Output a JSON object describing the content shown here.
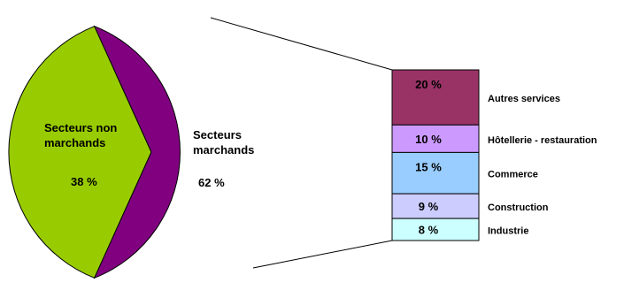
{
  "chart_data": {
    "type": "bar-of-pie",
    "pie": {
      "slices": [
        {
          "label_lines": [
            "Secteurs non",
            "marchands"
          ],
          "value": 38,
          "value_label": "38 %",
          "color": "#99cc00"
        },
        {
          "label_lines": [
            "Secteurs",
            "marchands"
          ],
          "value": 62,
          "value_label": "62 %",
          "color": "#800080"
        }
      ]
    },
    "breakdown": {
      "of": "Secteurs marchands",
      "segments": [
        {
          "label": "Autres services",
          "value": 20,
          "value_label": "20 %",
          "color": "#993366"
        },
        {
          "label": "Hôtellerie - restauration",
          "value": 10,
          "value_label": "10 %",
          "color": "#cc99ff"
        },
        {
          "label": "Commerce",
          "value": 15,
          "value_label": "15 %",
          "color": "#99ccff"
        },
        {
          "label": "Construction",
          "value": 9,
          "value_label": "9 %",
          "color": "#ccccff"
        },
        {
          "label": "Industrie",
          "value": 8,
          "value_label": "8 %",
          "color": "#ccffff"
        }
      ]
    },
    "unit": "%",
    "grid": false,
    "legend": "none"
  }
}
